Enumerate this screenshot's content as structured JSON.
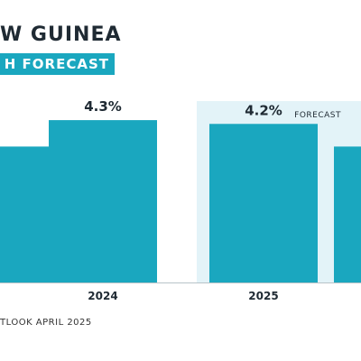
{
  "title": "W GUINEA",
  "subtitle": "H FORECAST",
  "source": "TLOOK APRIL 2025",
  "forecast_label": "FORECAST",
  "colors": {
    "bar": "#1aa7bf",
    "forecast_band": "#e3f3f8",
    "text": "#1f2a33"
  },
  "chart_data": {
    "type": "bar",
    "categories": [
      "",
      "2024",
      "2025",
      ""
    ],
    "values": [
      3.6,
      4.3,
      4.2,
      3.6
    ],
    "labels": [
      "",
      "4.3%",
      "4.2%",
      ""
    ],
    "forecast_from_index": 2,
    "ylim": [
      0,
      4.9
    ],
    "xlabel": "",
    "ylabel": ""
  }
}
